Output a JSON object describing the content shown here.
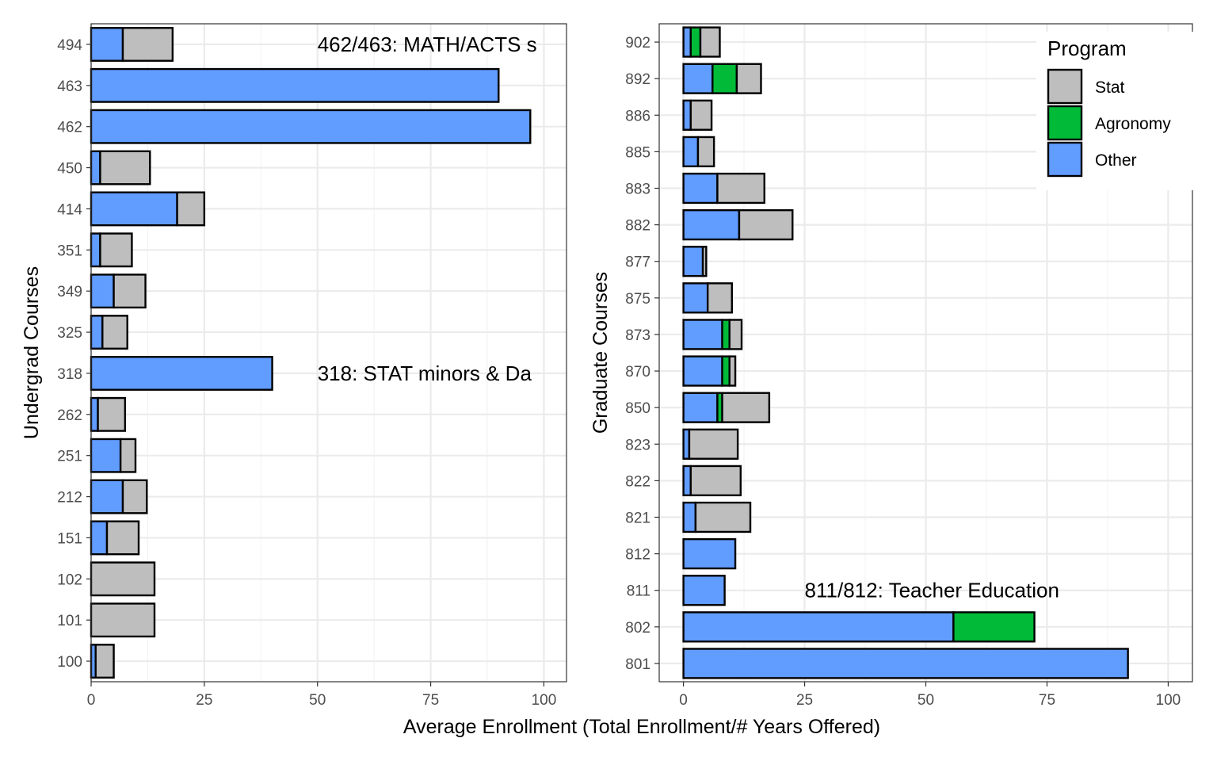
{
  "colors": {
    "Stat": "#bebebe",
    "Agronomy": "#00ba38",
    "Other": "#619cff"
  },
  "shared_xlabel": "Average Enrollment (Total Enrollment/# Years Offered)",
  "legend": {
    "title": "Program",
    "items": [
      "Stat",
      "Agronomy",
      "Other"
    ]
  },
  "chart_data": [
    {
      "type": "bar",
      "orientation": "horizontal",
      "stacked": true,
      "ylabel": "Undergrad Courses",
      "xlabel": "Average Enrollment (Total Enrollment/# Years Offered)",
      "xlim": [
        0,
        105
      ],
      "xticks": [
        "0",
        "25",
        "50",
        "75",
        "100"
      ],
      "categories": [
        "494",
        "463",
        "462",
        "450",
        "414",
        "351",
        "349",
        "325",
        "318",
        "262",
        "251",
        "212",
        "151",
        "102",
        "101",
        "100"
      ],
      "series": [
        {
          "name": "Other",
          "values": [
            7,
            90,
            97,
            2,
            19,
            2,
            5,
            2.5,
            40,
            1.5,
            6.5,
            7,
            3.5,
            0,
            0,
            1
          ]
        },
        {
          "name": "Agronomy",
          "values": [
            0,
            0,
            0,
            0,
            0,
            0,
            0,
            0,
            0,
            0,
            0,
            0,
            0,
            0,
            0,
            0
          ]
        },
        {
          "name": "Stat",
          "values": [
            11,
            0,
            0,
            11,
            6,
            7,
            7,
            5.5,
            0,
            6,
            3.3,
            5.3,
            7,
            14,
            14,
            4
          ]
        }
      ],
      "annotations": [
        {
          "text": "462/463: MATH/ACTS s",
          "x": 50,
          "category": "494"
        },
        {
          "text": "318: STAT minors & Da",
          "x": 50,
          "category": "318"
        }
      ]
    },
    {
      "type": "bar",
      "orientation": "horizontal",
      "stacked": true,
      "ylabel": "Graduate Courses",
      "xlabel": "Average Enrollment (Total Enrollment/# Years Offered)",
      "xlim": [
        -5,
        105
      ],
      "xticks": [
        "0",
        "25",
        "50",
        "75",
        "100"
      ],
      "categories": [
        "902",
        "892",
        "886",
        "885",
        "883",
        "882",
        "877",
        "875",
        "873",
        "870",
        "850",
        "823",
        "822",
        "821",
        "812",
        "811",
        "802",
        "801"
      ],
      "series": [
        {
          "name": "Other",
          "values": [
            1.5,
            6,
            1.5,
            3,
            7,
            11.5,
            4,
            5,
            8,
            8,
            7,
            1.2,
            1.5,
            2.5,
            10.7,
            8.5,
            55.7,
            91.7
          ]
        },
        {
          "name": "Agronomy",
          "values": [
            2,
            5,
            0,
            0,
            0,
            0,
            0,
            0,
            1.5,
            1.5,
            1,
            0,
            0,
            0,
            0,
            0,
            16.7,
            0
          ]
        },
        {
          "name": "Stat",
          "values": [
            4,
            5,
            4.3,
            3.3,
            9.7,
            11,
            0.7,
            5,
            2.5,
            1.2,
            9.7,
            10,
            10.3,
            11.3,
            0,
            0,
            0,
            0
          ]
        }
      ],
      "annotations": [
        {
          "text": "811/812: Teacher Education",
          "x": 25,
          "category": "811"
        }
      ]
    }
  ]
}
